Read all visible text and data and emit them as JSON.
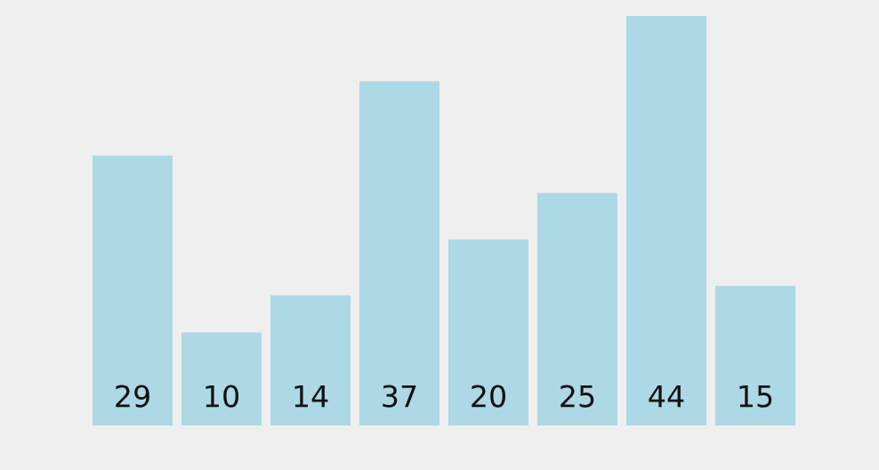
{
  "chart_data": {
    "type": "bar",
    "categories": [
      null,
      null,
      null,
      null,
      null,
      null,
      null,
      null
    ],
    "values": [
      29,
      10,
      14,
      37,
      20,
      25,
      44,
      15
    ],
    "color": "#add8e6",
    "ylim": [
      0,
      44
    ],
    "data_labels": true
  }
}
